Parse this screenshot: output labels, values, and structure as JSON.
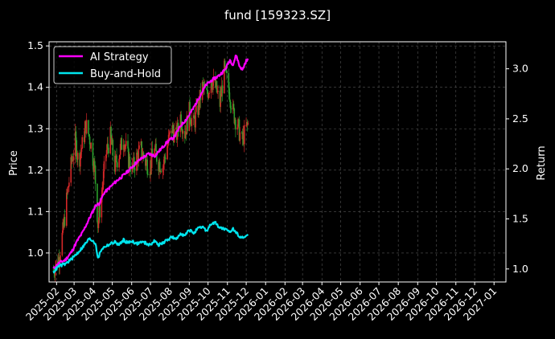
{
  "chart_data": {
    "type": "line",
    "title": "fund [159323.SZ]",
    "ylabel_left": "Price",
    "ylabel_right": "Return",
    "background": "#000000",
    "grid": true,
    "legend_position": "top-left",
    "x_tick_labels": [
      "2025-02",
      "2025-03",
      "2025-04",
      "2025-05",
      "2025-06",
      "2025-07",
      "2025-08",
      "2025-09",
      "2025-10",
      "2025-11",
      "2025-12",
      "2026-01",
      "2026-02",
      "2026-03",
      "2026-04",
      "2026-05",
      "2026-06",
      "2026-07",
      "2026-08",
      "2026-09",
      "2026-10",
      "2026-11",
      "2026-12",
      "2027-01"
    ],
    "x_range": [
      "2025-01-20",
      "2027-01-20"
    ],
    "ylim_left": [
      0.93,
      1.51
    ],
    "yticks_left": [
      "1.0",
      "1.1",
      "1.2",
      "1.3",
      "1.4",
      "1.5"
    ],
    "ylim_right": [
      0.87,
      3.27
    ],
    "yticks_right": [
      "1.0",
      "1.5",
      "2.0",
      "2.5",
      "3.0"
    ],
    "candle_colors": {
      "up": "#d62728",
      "down": "#2ca02c"
    },
    "price_points": [
      [
        "2025-01-27",
        0.96
      ],
      [
        "2025-02-05",
        0.99
      ],
      [
        "2025-02-12",
        1.06
      ],
      [
        "2025-02-18",
        1.14
      ],
      [
        "2025-02-25",
        1.22
      ],
      [
        "2025-03-03",
        1.27
      ],
      [
        "2025-03-08",
        1.22
      ],
      [
        "2025-03-14",
        1.26
      ],
      [
        "2025-03-20",
        1.31
      ],
      [
        "2025-03-27",
        1.27
      ],
      [
        "2025-04-03",
        1.2
      ],
      [
        "2025-04-08",
        1.07
      ],
      [
        "2025-04-14",
        1.14
      ],
      [
        "2025-04-21",
        1.24
      ],
      [
        "2025-04-28",
        1.28
      ],
      [
        "2025-05-05",
        1.21
      ],
      [
        "2025-05-12",
        1.24
      ],
      [
        "2025-05-19",
        1.28
      ],
      [
        "2025-05-26",
        1.23
      ],
      [
        "2025-06-02",
        1.2
      ],
      [
        "2025-06-09",
        1.23
      ],
      [
        "2025-06-16",
        1.25
      ],
      [
        "2025-06-23",
        1.22
      ],
      [
        "2025-06-30",
        1.21
      ],
      [
        "2025-07-07",
        1.25
      ],
      [
        "2025-07-14",
        1.22
      ],
      [
        "2025-07-21",
        1.21
      ],
      [
        "2025-07-28",
        1.26
      ],
      [
        "2025-08-04",
        1.3
      ],
      [
        "2025-08-11",
        1.28
      ],
      [
        "2025-08-18",
        1.33
      ],
      [
        "2025-08-25",
        1.29
      ],
      [
        "2025-09-01",
        1.34
      ],
      [
        "2025-09-08",
        1.31
      ],
      [
        "2025-09-15",
        1.35
      ],
      [
        "2025-09-22",
        1.4
      ],
      [
        "2025-09-29",
        1.38
      ],
      [
        "2025-10-06",
        1.42
      ],
      [
        "2025-10-13",
        1.4
      ],
      [
        "2025-10-20",
        1.36
      ],
      [
        "2025-10-27",
        1.44
      ],
      [
        "2025-11-03",
        1.4
      ],
      [
        "2025-11-10",
        1.34
      ],
      [
        "2025-11-17",
        1.31
      ],
      [
        "2025-11-24",
        1.27
      ],
      [
        "2025-12-01",
        1.3
      ],
      [
        "2025-12-04",
        1.31
      ]
    ],
    "series": [
      {
        "name": "AI Strategy",
        "axis": "right",
        "color": "#ff00ff",
        "points": [
          [
            "2025-01-27",
            1.0
          ],
          [
            "2025-02-05",
            1.06
          ],
          [
            "2025-02-15",
            1.09
          ],
          [
            "2025-02-25",
            1.17
          ],
          [
            "2025-03-05",
            1.27
          ],
          [
            "2025-03-15",
            1.37
          ],
          [
            "2025-03-25",
            1.5
          ],
          [
            "2025-04-05",
            1.64
          ],
          [
            "2025-04-10",
            1.65
          ],
          [
            "2025-04-18",
            1.76
          ],
          [
            "2025-04-28",
            1.82
          ],
          [
            "2025-05-08",
            1.88
          ],
          [
            "2025-05-18",
            1.93
          ],
          [
            "2025-05-28",
            1.99
          ],
          [
            "2025-06-08",
            2.06
          ],
          [
            "2025-06-18",
            2.11
          ],
          [
            "2025-06-28",
            2.15
          ],
          [
            "2025-07-08",
            2.13
          ],
          [
            "2025-07-18",
            2.2
          ],
          [
            "2025-07-28",
            2.27
          ],
          [
            "2025-08-08",
            2.32
          ],
          [
            "2025-08-18",
            2.43
          ],
          [
            "2025-08-28",
            2.5
          ],
          [
            "2025-09-08",
            2.61
          ],
          [
            "2025-09-18",
            2.73
          ],
          [
            "2025-09-28",
            2.84
          ],
          [
            "2025-10-08",
            2.89
          ],
          [
            "2025-10-18",
            2.93
          ],
          [
            "2025-10-28",
            2.99
          ],
          [
            "2025-11-05",
            3.09
          ],
          [
            "2025-11-10",
            3.04
          ],
          [
            "2025-11-15",
            3.14
          ],
          [
            "2025-11-20",
            3.03
          ],
          [
            "2025-11-25",
            2.99
          ],
          [
            "2025-12-01",
            3.08
          ],
          [
            "2025-12-04",
            3.09
          ]
        ]
      },
      {
        "name": "Buy-and-Hold",
        "axis": "right",
        "color": "#00e5ee",
        "points": [
          [
            "2025-01-27",
            0.97
          ],
          [
            "2025-02-05",
            1.03
          ],
          [
            "2025-02-15",
            1.05
          ],
          [
            "2025-02-25",
            1.1
          ],
          [
            "2025-03-05",
            1.15
          ],
          [
            "2025-03-15",
            1.22
          ],
          [
            "2025-03-25",
            1.3
          ],
          [
            "2025-04-01",
            1.28
          ],
          [
            "2025-04-05",
            1.24
          ],
          [
            "2025-04-08",
            1.1
          ],
          [
            "2025-04-14",
            1.2
          ],
          [
            "2025-04-21",
            1.23
          ],
          [
            "2025-04-28",
            1.25
          ],
          [
            "2025-05-05",
            1.27
          ],
          [
            "2025-05-12",
            1.24
          ],
          [
            "2025-05-19",
            1.29
          ],
          [
            "2025-05-26",
            1.26
          ],
          [
            "2025-06-02",
            1.28
          ],
          [
            "2025-06-09",
            1.25
          ],
          [
            "2025-06-16",
            1.27
          ],
          [
            "2025-06-23",
            1.26
          ],
          [
            "2025-06-30",
            1.24
          ],
          [
            "2025-07-07",
            1.28
          ],
          [
            "2025-07-14",
            1.24
          ],
          [
            "2025-07-21",
            1.26
          ],
          [
            "2025-07-28",
            1.29
          ],
          [
            "2025-08-04",
            1.32
          ],
          [
            "2025-08-11",
            1.29
          ],
          [
            "2025-08-18",
            1.36
          ],
          [
            "2025-08-25",
            1.33
          ],
          [
            "2025-09-01",
            1.39
          ],
          [
            "2025-09-08",
            1.36
          ],
          [
            "2025-09-15",
            1.4
          ],
          [
            "2025-09-22",
            1.42
          ],
          [
            "2025-09-29",
            1.38
          ],
          [
            "2025-10-06",
            1.45
          ],
          [
            "2025-10-13",
            1.46
          ],
          [
            "2025-10-20",
            1.41
          ],
          [
            "2025-10-27",
            1.4
          ],
          [
            "2025-11-03",
            1.37
          ],
          [
            "2025-11-10",
            1.4
          ],
          [
            "2025-11-17",
            1.35
          ],
          [
            "2025-11-24",
            1.31
          ],
          [
            "2025-12-01",
            1.33
          ],
          [
            "2025-12-04",
            1.34
          ]
        ]
      }
    ]
  }
}
